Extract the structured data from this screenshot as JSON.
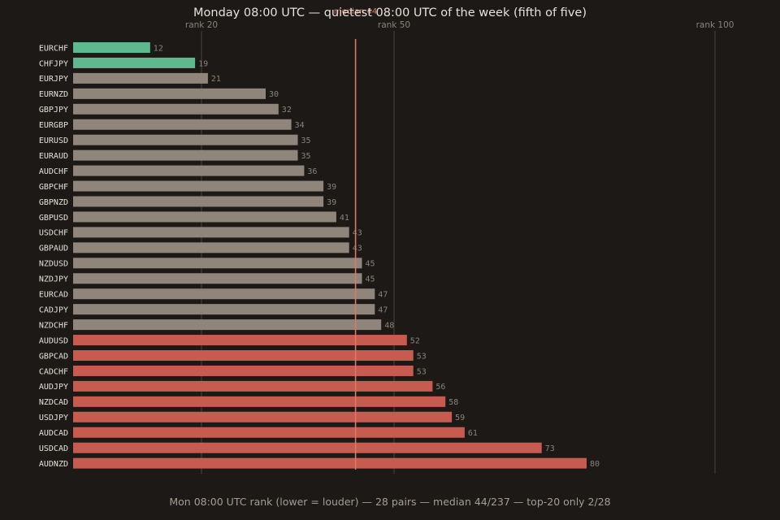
{
  "chart_data": {
    "type": "bar",
    "orientation": "horizontal",
    "title": "Monday 08:00 UTC — quietest 08:00 UTC of the week (fifth of five)",
    "caption": "Mon 08:00 UTC rank (lower = louder) — 28 pairs — median 44/237 — top-20 only 2/28",
    "median_label": "median 44",
    "median_value": 44,
    "xlim": [
      0,
      100
    ],
    "reference_lines": [
      {
        "value": 20,
        "label": "rank 20"
      },
      {
        "value": 50,
        "label": "rank 50"
      },
      {
        "value": 100,
        "label": "rank 100"
      }
    ],
    "categories": [
      "EURCHF",
      "CHFJPY",
      "EURJPY",
      "EURNZD",
      "GBPJPY",
      "EURGBP",
      "EURUSD",
      "EURAUD",
      "AUDCHF",
      "GBPCHF",
      "GBPNZD",
      "GBPUSD",
      "USDCHF",
      "GBPAUD",
      "NZDUSD",
      "NZDJPY",
      "EURCAD",
      "CADJPY",
      "NZDCHF",
      "AUDUSD",
      "GBPCAD",
      "CADCHF",
      "AUDJPY",
      "NZDCAD",
      "USDJPY",
      "AUDCAD",
      "USDCAD",
      "AUDNZD"
    ],
    "values": [
      12,
      19,
      21,
      30,
      32,
      34,
      35,
      35,
      36,
      39,
      39,
      41,
      43,
      43,
      45,
      45,
      47,
      47,
      48,
      52,
      53,
      53,
      56,
      58,
      59,
      61,
      73,
      80
    ],
    "colors": {
      "background": "#1c1917",
      "top20": "#5fb98f",
      "middle": "#8f857a",
      "bottom": "#c75b4f",
      "median": "#d8796b",
      "gridline": "#3a3532",
      "label": "#e6e1d9",
      "value_label": "#8a837b",
      "ref_label": "#8a837b",
      "caption": "#a49d94"
    },
    "grid": true,
    "legend": "none"
  }
}
